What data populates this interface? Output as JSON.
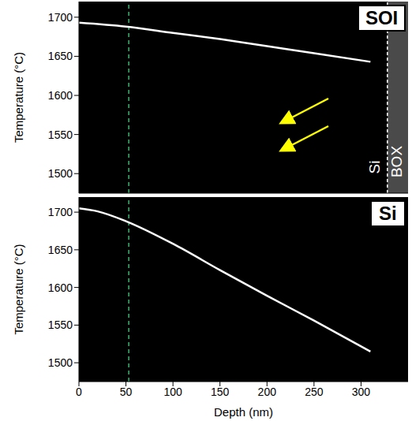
{
  "chart_data": [
    {
      "type": "line",
      "panel_label": "SOI",
      "y_label": "Temperature (°C)",
      "xlim": [
        0,
        350
      ],
      "ylim": [
        1475,
        1720
      ],
      "xticks": [
        0,
        50,
        100,
        150,
        200,
        250,
        300
      ],
      "yticks": [
        1500,
        1550,
        1600,
        1650,
        1700
      ],
      "tick_labels": "y",
      "grid": false,
      "x": [
        0,
        50,
        100,
        150,
        200,
        250,
        310
      ],
      "values": [
        1693,
        1688,
        1680,
        1672,
        1663,
        1654,
        1643
      ],
      "color": "#ffffff",
      "marker_depth": 53,
      "marker_color": "#3cb371",
      "box_start": 328,
      "region_labels": [
        "Si",
        "BOX"
      ]
    },
    {
      "type": "line",
      "panel_label": "Si",
      "y_label": "Temperature (°C)",
      "x_label": "Depth (nm)",
      "xlim": [
        0,
        350
      ],
      "ylim": [
        1475,
        1720
      ],
      "xticks": [
        0,
        50,
        100,
        150,
        200,
        250,
        300
      ],
      "yticks": [
        1500,
        1550,
        1600,
        1650,
        1700
      ],
      "tick_labels": true,
      "grid": false,
      "x": [
        0,
        20,
        50,
        100,
        150,
        200,
        250,
        310
      ],
      "values": [
        1705,
        1701,
        1688,
        1658,
        1623,
        1589,
        1556,
        1515
      ],
      "color": "#ffffff",
      "marker_depth": 53,
      "marker_color": "#3cb371"
    }
  ]
}
